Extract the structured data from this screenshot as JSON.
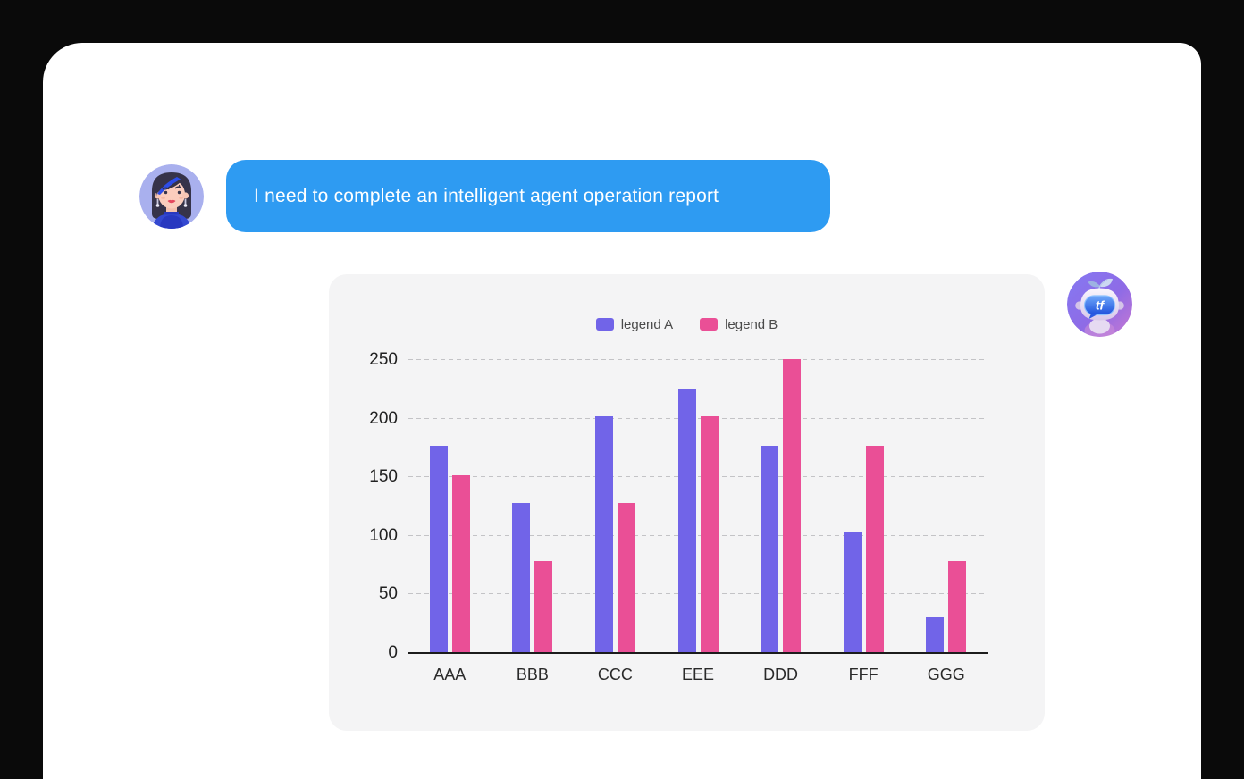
{
  "window": {
    "frame_bg": "#0a0a0a",
    "card_bg": "#ffffff"
  },
  "chat": {
    "user_message": "I need to complete an intelligent agent operation report",
    "bubble_color": "#2e9bf2"
  },
  "avatars": {
    "user": "woman-avatar",
    "assistant": "tf-robot-avatar",
    "assistant_badge": "tf"
  },
  "chart_data": {
    "type": "bar",
    "title": "",
    "categories": [
      "AAA",
      "BBB",
      "CCC",
      "EEE",
      "DDD",
      "FFF",
      "GGG"
    ],
    "series": [
      {
        "name": "legend A",
        "color": "#7164e8",
        "values": [
          176,
          127,
          201,
          225,
          176,
          103,
          30
        ]
      },
      {
        "name": "legend B",
        "color": "#ea4f96",
        "values": [
          151,
          78,
          127,
          201,
          250,
          176,
          78
        ]
      }
    ],
    "ylim": [
      0,
      250
    ],
    "yticks": [
      0,
      50,
      100,
      150,
      200,
      250
    ],
    "grid": true,
    "grid_style": "dashed",
    "legend_position": "top-center",
    "panel_bg": "#f4f4f5",
    "axis_color": "#1c1c1c"
  }
}
